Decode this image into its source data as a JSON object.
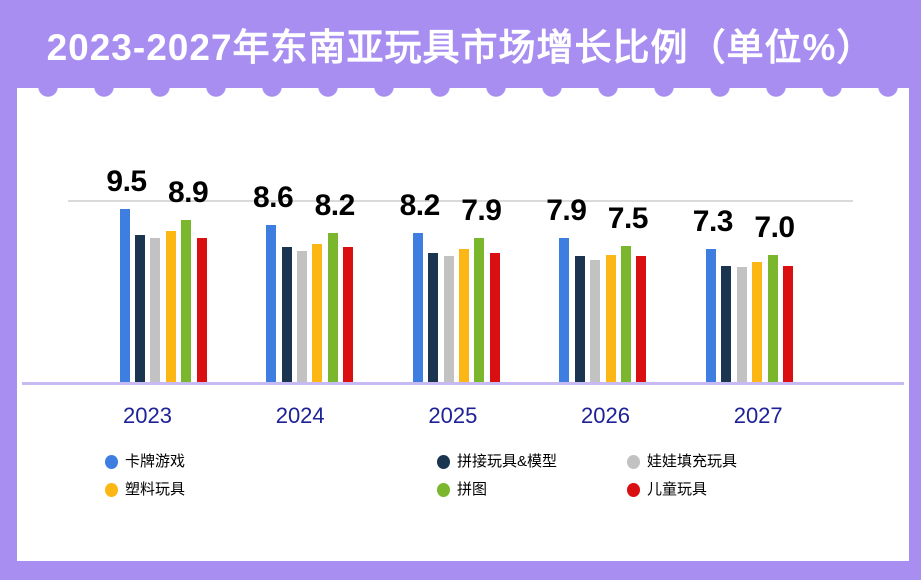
{
  "header": {
    "title": "2023-2027年东南亚玩具市场增长比例（单位%）"
  },
  "colors": {
    "background_purple": "#a78ef0",
    "card_white": "#ffffff",
    "gridline_gray": "#dadada",
    "axis_lavender": "#c7baf3",
    "year_label_blue": "#1e2296",
    "data_label_black": "#000000"
  },
  "chart_data": {
    "type": "bar",
    "title": "2023-2027年东南亚玩具市场增长比例（单位%）",
    "unit": "%",
    "categories": [
      "2023",
      "2024",
      "2025",
      "2026",
      "2027"
    ],
    "series": [
      {
        "name": "卡牌游戏",
        "color": "#3d7ee0",
        "values": [
          9.5,
          8.6,
          8.2,
          7.9,
          7.3
        ],
        "show_labels": true
      },
      {
        "name": "拼接玩具&模型",
        "color": "#1b344f",
        "values": [
          8.1,
          7.4,
          7.1,
          6.9,
          6.4
        ],
        "show_labels": false
      },
      {
        "name": "娃娃填充玩具",
        "color": "#c2c2c2",
        "values": [
          7.9,
          7.2,
          6.9,
          6.7,
          6.3
        ],
        "show_labels": false
      },
      {
        "name": "塑料玩具",
        "color": "#fdb714",
        "values": [
          8.3,
          7.6,
          7.3,
          7.0,
          6.6
        ],
        "show_labels": false
      },
      {
        "name": "拼图",
        "color": "#7ab72c",
        "values": [
          8.9,
          8.2,
          7.9,
          7.5,
          7.0
        ],
        "show_labels": true
      },
      {
        "name": "儿童玩具",
        "color": "#d90f11",
        "values": [
          7.9,
          7.4,
          7.1,
          6.9,
          6.4
        ],
        "show_labels": false
      }
    ],
    "visible_value_labels": {
      "卡牌游戏": [
        "9.5",
        "8.6",
        "8.2",
        "7.9",
        "7.3"
      ],
      "拼图": [
        "8.9",
        "8.2",
        "7.9",
        "7.5",
        "7.0"
      ]
    },
    "ylim": [
      0,
      10.5
    ],
    "gridline_value": 10,
    "grid": "single horizontal line at 10",
    "legend_position": "bottom",
    "legend_columns": [
      [
        "卡牌游戏",
        "塑料玩具"
      ],
      [
        "拼接玩具&模型",
        "拼图"
      ],
      [
        "娃娃填充玩具",
        "儿童玩具"
      ]
    ]
  }
}
